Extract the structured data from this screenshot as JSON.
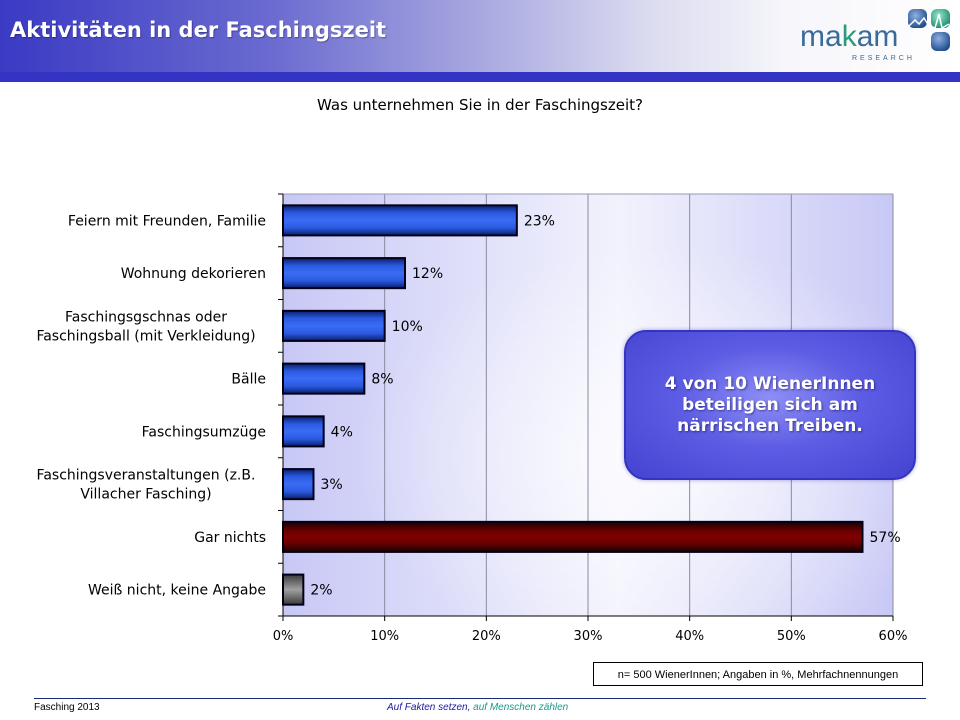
{
  "header": {
    "title": "Aktivitäten in der Faschingszeit"
  },
  "logo": {
    "word_part1": "ma",
    "word_part2": "k",
    "word_part3": "am",
    "subtitle": "RESEARCH"
  },
  "colors": {
    "header_blue": "#3333c4",
    "bar_blue": "#2a5ae8",
    "bar_red": "#7a0000",
    "bar_gray": "#8a8a8a",
    "plot_bg": "#ccccf8"
  },
  "chart_data": {
    "type": "bar",
    "orientation": "horizontal",
    "title": "Was unternehmen Sie in der Faschingszeit?",
    "xlabel": "",
    "ylabel": "",
    "xlim": [
      0,
      60
    ],
    "xticks": [
      0,
      10,
      20,
      30,
      40,
      50,
      60
    ],
    "xtick_labels": [
      "0%",
      "10%",
      "20%",
      "30%",
      "40%",
      "50%",
      "60%"
    ],
    "grid": true,
    "categories": [
      [
        "Feiern mit Freunden, Familie"
      ],
      [
        "Wohnung dekorieren"
      ],
      [
        "Faschingsgschnas oder",
        "Faschingsball (mit Verkleidung)"
      ],
      [
        "Bälle"
      ],
      [
        "Faschingsumzüge"
      ],
      [
        "Faschingsveranstaltungen (z.B.",
        "Villacher Fasching)"
      ],
      [
        "Gar nichts"
      ],
      [
        "Weiß nicht, keine Angabe"
      ]
    ],
    "values": [
      23,
      12,
      10,
      8,
      4,
      3,
      57,
      2
    ],
    "value_labels": [
      "23%",
      "12%",
      "10%",
      "8%",
      "4%",
      "3%",
      "57%",
      "2%"
    ],
    "bar_colors": [
      "blue",
      "blue",
      "blue",
      "blue",
      "blue",
      "blue",
      "red",
      "gray"
    ]
  },
  "callout": {
    "lines": [
      "4 von 10 WienerInnen",
      "beteiligen sich am",
      "närrischen Treiben."
    ]
  },
  "note": "n= 500 WienerInnen; Angaben in %, Mehrfachnennungen",
  "footer": {
    "left": "Fasching 2013",
    "center_part1": "Auf Fakten setzen,",
    "center_part2": "auf Menschen zählen"
  }
}
